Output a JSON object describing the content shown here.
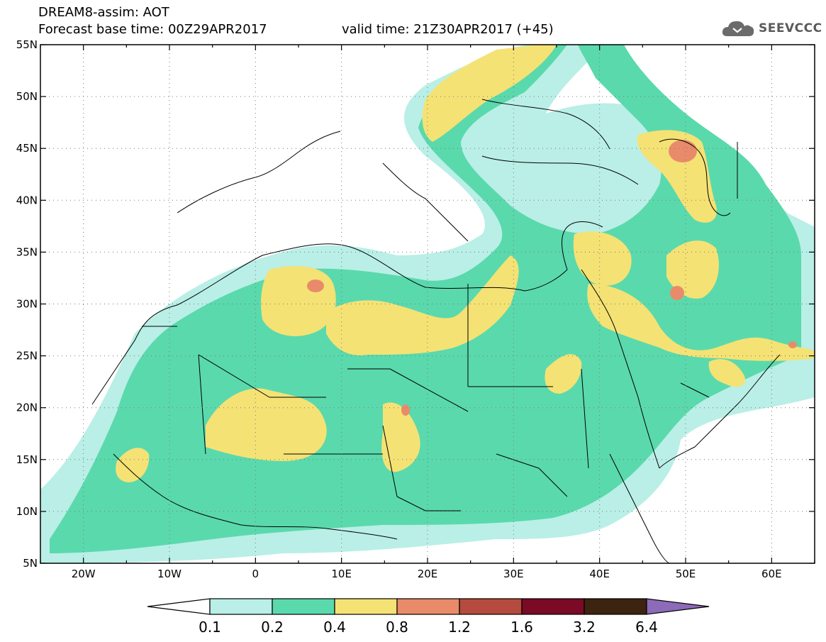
{
  "header": {
    "title_line1": "DREAM8-assim: AOT",
    "title_line2": "Forecast base time: 00Z29APR2017",
    "valid_time": "valid time: 21Z30APR2017 (+45)"
  },
  "logo": {
    "icon": "cloud-icon",
    "text": "SEEVCCC"
  },
  "axes": {
    "lat_labels": [
      "55N",
      "50N",
      "45N",
      "40N",
      "35N",
      "30N",
      "25N",
      "20N",
      "15N",
      "10N",
      "5N"
    ],
    "lon_labels": [
      "20W",
      "10W",
      "0",
      "10E",
      "20E",
      "30E",
      "40E",
      "50E",
      "60E"
    ]
  },
  "legend": {
    "levels": [
      "0.1",
      "0.2",
      "0.4",
      "0.8",
      "1.2",
      "1.6",
      "3.2",
      "6.4"
    ],
    "colors": [
      "#ffffff",
      "#b9efe6",
      "#5ad9ad",
      "#f5e274",
      "#e98b6a",
      "#b44b3e",
      "#7a0a25",
      "#3c2410",
      "#8c6bb8"
    ]
  }
}
